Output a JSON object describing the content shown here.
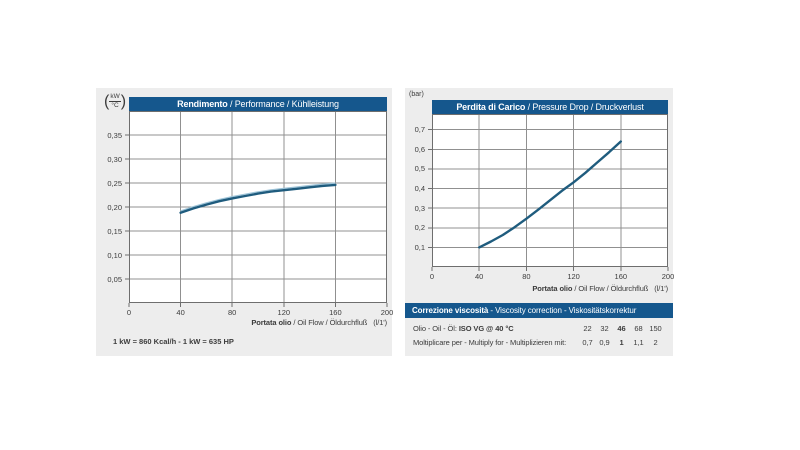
{
  "colors": {
    "accent_blue": "#15578d",
    "curve": "#1f5c7e",
    "curve_highlight": "#9cc3d8",
    "grid": "#909090",
    "axis": "#6e6e6e",
    "card_bg": "#ededed",
    "text": "#3c3c3c"
  },
  "chart_data": [
    {
      "type": "line",
      "title_bold": "Rendimento",
      "title_rest": " / Performance / Kühlleistung",
      "y_unit_top": "kW",
      "y_unit_bottom": "°C",
      "xlabel_bold": "Portata olio",
      "xlabel_rest": " / Oil Flow / Öldurchfluß",
      "xlabel_unit": "(l/1')",
      "xlim": [
        0,
        200
      ],
      "ylim": [
        0,
        0.4
      ],
      "xticks": [
        0,
        40,
        80,
        120,
        160,
        200
      ],
      "xtick_labels": [
        "0",
        "40",
        "80",
        "120",
        "160",
        "200"
      ],
      "yticks": [
        0.05,
        0.1,
        0.15,
        0.2,
        0.25,
        0.3,
        0.35
      ],
      "ytick_labels": [
        "0,05",
        "0,10",
        "0,15",
        "0,20",
        "0,25",
        "0,30",
        "0,35"
      ],
      "grid": true,
      "legend": "none",
      "series": [
        {
          "name": "cooling-performance",
          "highlight": true,
          "x": [
            40,
            50,
            60,
            70,
            80,
            90,
            100,
            110,
            120,
            130,
            140,
            150,
            160
          ],
          "y": [
            0.188,
            0.197,
            0.205,
            0.212,
            0.218,
            0.223,
            0.228,
            0.232,
            0.235,
            0.238,
            0.241,
            0.244,
            0.246
          ]
        }
      ],
      "footnote": "1 kW = 860 Kcal/h  - 1 kW = 635 HP"
    },
    {
      "type": "line",
      "title_bold": "Perdita di Carico",
      "title_rest": " / Pressure Drop / Druckverlust",
      "y_unit": "(bar)",
      "xlabel_bold": "Portata olio",
      "xlabel_rest": " / Oil Flow / Öldurchfluß",
      "xlabel_unit": "(l/1')",
      "xlim": [
        0,
        200
      ],
      "ylim": [
        0,
        0.78
      ],
      "xticks": [
        0,
        40,
        80,
        120,
        160,
        200
      ],
      "xtick_labels": [
        "0",
        "40",
        "80",
        "120",
        "160",
        "200"
      ],
      "yticks": [
        0.1,
        0.2,
        0.3,
        0.4,
        0.5,
        0.6,
        0.7
      ],
      "ytick_labels": [
        "0,1",
        "0,2",
        "0,3",
        "0,4",
        "0,5",
        "0,6",
        "0,7"
      ],
      "grid": true,
      "legend": "none",
      "series": [
        {
          "name": "pressure-drop",
          "highlight": false,
          "x": [
            40,
            50,
            60,
            70,
            80,
            90,
            100,
            110,
            120,
            130,
            140,
            150,
            160
          ],
          "y": [
            0.1,
            0.13,
            0.163,
            0.203,
            0.246,
            0.292,
            0.34,
            0.388,
            0.432,
            0.48,
            0.533,
            0.585,
            0.64
          ]
        }
      ]
    }
  ],
  "viscosity": {
    "header_bold": "Correzione viscosità",
    "header_rest": "  -  Viscosity correction  -  Viskositätskorrektur",
    "rows": [
      {
        "label": "Olio - Oil - Öl: ",
        "label_bold": "ISO VG @ 40 °C",
        "values": [
          "22",
          "32",
          "46",
          "68",
          "150"
        ],
        "bold_index": 2
      },
      {
        "label": "Moltiplicare per - Multiply for - Multiplizieren mit:",
        "label_bold": "",
        "values": [
          "0,7",
          "0,9",
          "1",
          "1,1",
          "2"
        ],
        "bold_index": 2
      }
    ]
  }
}
